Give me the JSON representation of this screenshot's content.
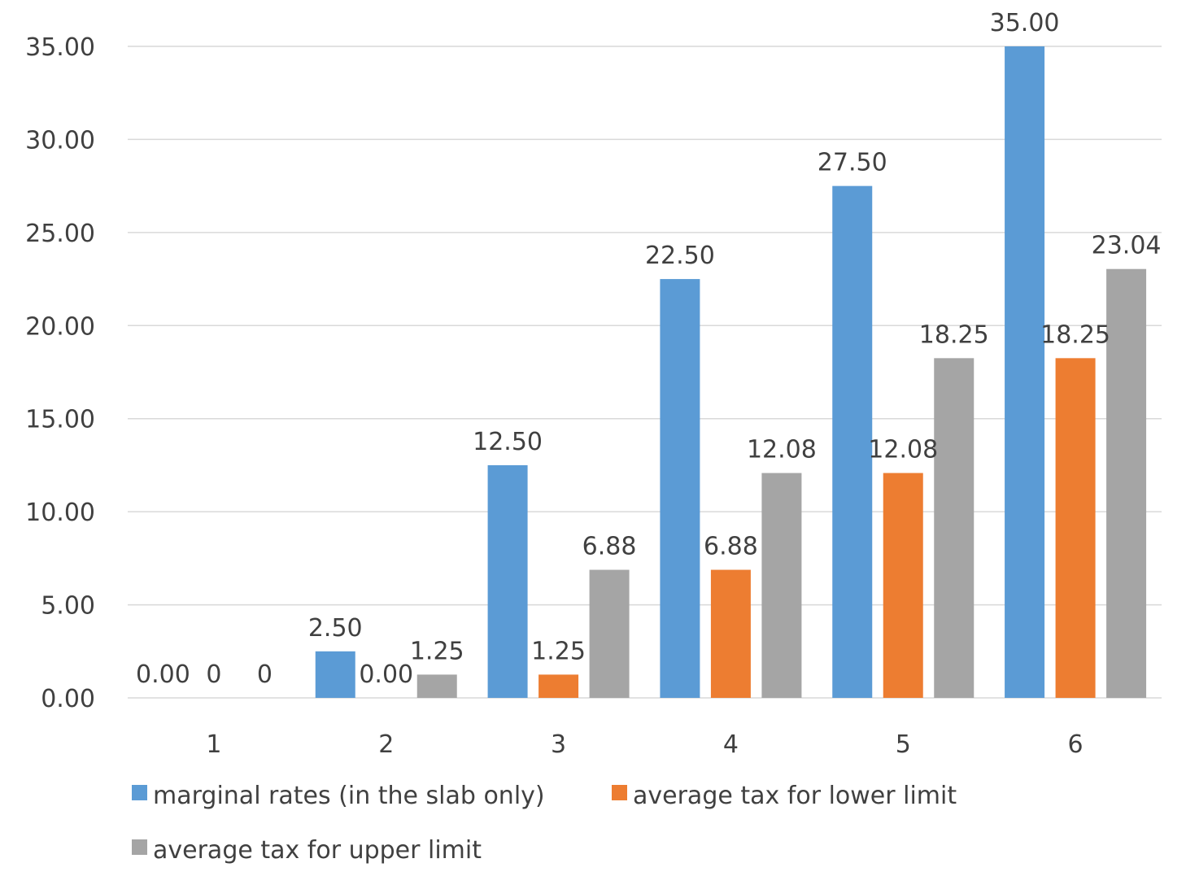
{
  "chart_data": {
    "type": "bar",
    "title": "",
    "xlabel": "",
    "ylabel": "",
    "categories": [
      "1",
      "2",
      "3",
      "4",
      "5",
      "6"
    ],
    "series": [
      {
        "name": "marginal rates (in the slab only)",
        "color": "#5B9BD5",
        "values": [
          0,
          2.5,
          12.5,
          22.5,
          27.5,
          35
        ],
        "labels": [
          "0.00",
          "2.50",
          "12.50",
          "22.50",
          "27.50",
          "35.00"
        ]
      },
      {
        "name": "average tax for lower limit",
        "color": "#ED7D31",
        "values": [
          0,
          0,
          1.25,
          6.88,
          12.08,
          18.25
        ],
        "labels": [
          "0",
          "0.00",
          "1.25",
          "6.88",
          "12.08",
          "18.25"
        ]
      },
      {
        "name": "average tax for upper limit",
        "color": "#A5A5A5",
        "values": [
          0,
          1.25,
          6.88,
          12.08,
          18.25,
          23.04
        ],
        "labels": [
          "0",
          "1.25",
          "6.88",
          "12.08",
          "18.25",
          "23.04"
        ]
      }
    ],
    "ylim": [
      0,
      35
    ],
    "yticks": [
      "0.00",
      "5.00",
      "10.00",
      "15.00",
      "20.00",
      "25.00",
      "30.00",
      "35.00"
    ],
    "grid": true,
    "legend_position": "bottom-left"
  }
}
